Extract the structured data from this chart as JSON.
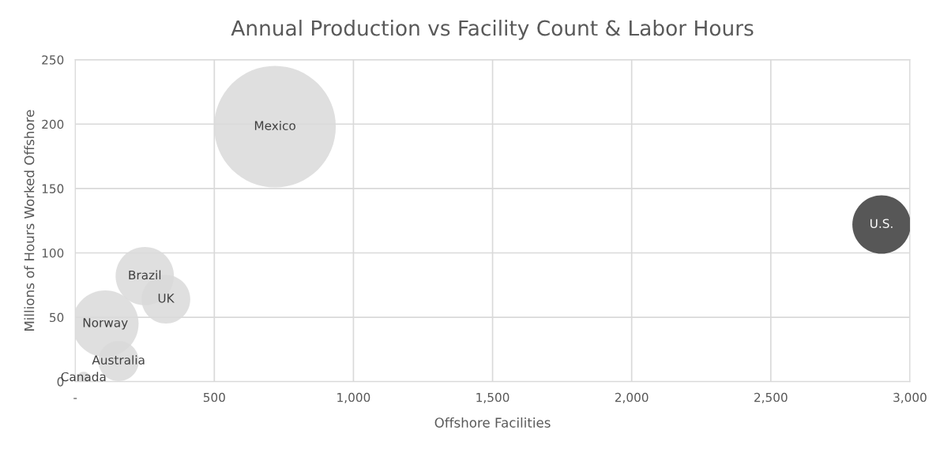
{
  "chart_data": {
    "type": "bubble",
    "title": "Annual Production vs Facility Count & Labor Hours",
    "xlabel": "Offshore Facilities",
    "ylabel": "Millions of Hours Worked Offshore",
    "series": [
      {
        "name": "Mexico",
        "color": "#d9d9d9",
        "x": [
          718
        ],
        "values": [
          198
        ],
        "sizes": [
          1
        ]
      },
      {
        "name": "U.S.",
        "color": "#3a3a3a",
        "x": [
          2898
        ],
        "values": [
          122
        ],
        "sizes": [
          0.23
        ]
      },
      {
        "name": "Brazil",
        "color": "#d9d9d9",
        "x": [
          250
        ],
        "values": [
          82
        ],
        "sizes": [
          0.23
        ]
      },
      {
        "name": "UK",
        "color": "#d9d9d9",
        "x": [
          326
        ],
        "values": [
          64
        ],
        "sizes": [
          0.16
        ]
      },
      {
        "name": "Norway",
        "color": "#d9d9d9",
        "x": [
          108
        ],
        "values": [
          45
        ],
        "sizes": [
          0.3
        ]
      },
      {
        "name": "Australia",
        "color": "#d9d9d9",
        "x": [
          156
        ],
        "values": [
          16
        ],
        "sizes": [
          0.11
        ]
      },
      {
        "name": "Canada",
        "color": "#d9d9d9",
        "x": [
          30
        ],
        "values": [
          3
        ],
        "sizes": [
          0.01
        ]
      }
    ],
    "xlim": [
      0,
      3000
    ],
    "xticks": [
      {
        "value": 0,
        "label": "-"
      },
      {
        "value": 500,
        "label": "500"
      },
      {
        "value": 1000,
        "label": "1,000"
      },
      {
        "value": 1500,
        "label": "1,500"
      },
      {
        "value": 2000,
        "label": "2,000"
      },
      {
        "value": 2500,
        "label": "2,500"
      },
      {
        "value": 3000,
        "label": "3,000"
      }
    ],
    "ylim": [
      0,
      250
    ],
    "yticks": [
      0,
      50,
      100,
      150,
      200,
      250
    ],
    "grid": true
  }
}
